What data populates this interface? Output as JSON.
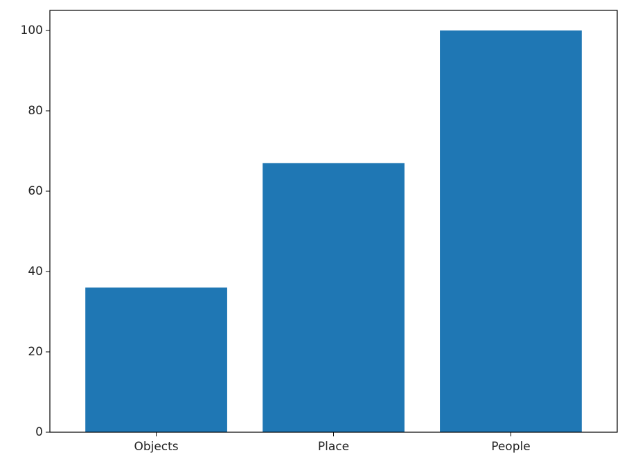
{
  "chart_data": {
    "type": "bar",
    "categories": [
      "Objects",
      "Place",
      "People"
    ],
    "values": [
      36,
      67,
      100
    ],
    "title": "",
    "xlabel": "",
    "ylabel": "",
    "ylim": [
      0,
      105
    ],
    "yticks": [
      0,
      20,
      40,
      60,
      80,
      100
    ],
    "grid": false,
    "bar_color": "#1f77b4"
  }
}
